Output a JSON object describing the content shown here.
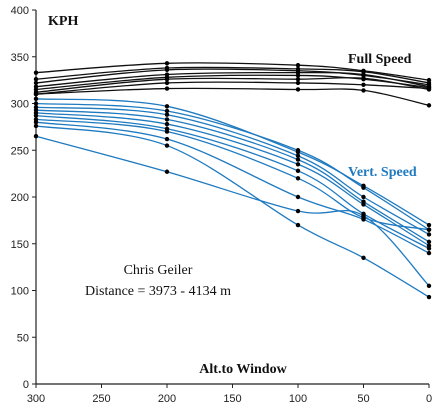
{
  "chart_data": {
    "type": "line",
    "ylabel": "KPH",
    "xlabel": "Alt.to Window",
    "annotation_line1": "Chris Geiler",
    "annotation_line2": "Distance = 3973 - 4134 m",
    "x": [
      300,
      200,
      100,
      50,
      0
    ],
    "xlim": [
      300,
      0
    ],
    "ylim": [
      0,
      400
    ],
    "xticks": [
      300,
      250,
      200,
      150,
      100,
      50,
      0
    ],
    "yticks": [
      0,
      50,
      100,
      150,
      200,
      250,
      300,
      350,
      400
    ],
    "grid": false,
    "groups": [
      {
        "name": "Full Speed",
        "color": "#111111",
        "series": [
          [
            333,
            343,
            341,
            335,
            325
          ],
          [
            326,
            338,
            337,
            334,
            322
          ],
          [
            322,
            336,
            335,
            330,
            320
          ],
          [
            318,
            331,
            333,
            331,
            318
          ],
          [
            315,
            328,
            330,
            326,
            317
          ],
          [
            312,
            326,
            326,
            327,
            315
          ],
          [
            310,
            322,
            322,
            320,
            316
          ],
          [
            310,
            316,
            315,
            314,
            298
          ]
        ]
      },
      {
        "name": "Vert. Speed",
        "color": "#1f7ac0",
        "series": [
          [
            305,
            297,
            248,
            212,
            170
          ],
          [
            300,
            292,
            250,
            210,
            165
          ],
          [
            296,
            288,
            244,
            200,
            160
          ],
          [
            293,
            283,
            240,
            195,
            152
          ],
          [
            290,
            278,
            235,
            192,
            148
          ],
          [
            287,
            273,
            228,
            182,
            145
          ],
          [
            283,
            270,
            220,
            178,
            165
          ],
          [
            280,
            262,
            200,
            176,
            140
          ],
          [
            276,
            255,
            170,
            135,
            93
          ],
          [
            265,
            227,
            185,
            180,
            105
          ]
        ]
      }
    ]
  }
}
